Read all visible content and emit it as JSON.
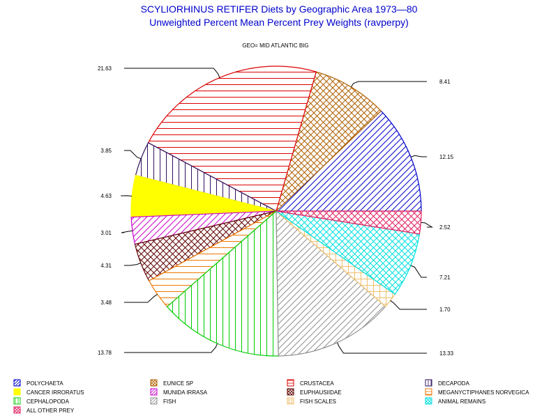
{
  "chart_data": {
    "type": "pie",
    "title": "SCYLIORHINUS RETIFER Diets by Geographic Area 1973—80",
    "subtitle": "Unweighted Percent Mean Percent Prey  Weights (ravperpy)",
    "geo_label": "GEO= MID ATLANTIC BIG",
    "slices": [
      {
        "name": "POLYCHAETA",
        "value": 12.15,
        "label": "12.15",
        "color": "#0000cc",
        "pattern": "diag-up"
      },
      {
        "name": "EUNICE SP",
        "value": 8.41,
        "label": "8.41",
        "color": "#b06000",
        "pattern": "cross-diag"
      },
      {
        "name": "CRUSTACEA",
        "value": 21.63,
        "label": "21.63",
        "color": "#dd0000",
        "pattern": "horizontal"
      },
      {
        "name": "DECAPODA",
        "value": 3.85,
        "label": "3.85",
        "color": "#301060",
        "pattern": "vertical"
      },
      {
        "name": "CANCER IRRORATUS",
        "value": 4.63,
        "label": "4.63",
        "color": "#ffff00",
        "pattern": "solid"
      },
      {
        "name": "MUNIDA IRRASA",
        "value": 3.01,
        "label": "3.01",
        "color": "#cc00cc",
        "pattern": "diag-up"
      },
      {
        "name": "EUPHAUSIIDAE",
        "value": 4.31,
        "label": "4.31",
        "color": "#600000",
        "pattern": "cross-diag"
      },
      {
        "name": "MEGANYCTIPHANES NORVEGICA",
        "value": 3.48,
        "label": "3.48",
        "color": "#ee7700",
        "pattern": "horizontal"
      },
      {
        "name": "CEPHALOPODA",
        "value": 13.78,
        "label": "13.78",
        "color": "#00cc00",
        "pattern": "vertical"
      },
      {
        "name": "FISH",
        "value": 13.33,
        "label": "13.33",
        "color": "#909090",
        "pattern": "diag-up"
      },
      {
        "name": "FISH SCALES",
        "value": 1.7,
        "label": "1.70",
        "color": "#f0c070",
        "pattern": "cross"
      },
      {
        "name": "ANIMAL REMAINS",
        "value": 7.21,
        "label": "7.21",
        "color": "#00e0e0",
        "pattern": "cross-diag"
      },
      {
        "name": "ALL OTHER PREY",
        "value": 2.52,
        "label": "2.52",
        "color": "#e02060",
        "pattern": "cross-diag"
      }
    ],
    "legend_position": "bottom"
  }
}
